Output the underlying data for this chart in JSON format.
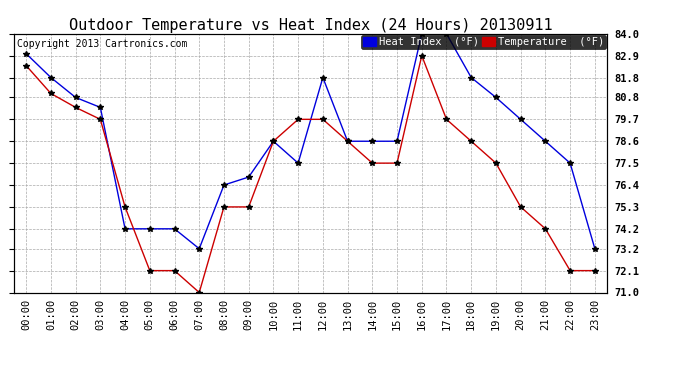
{
  "title": "Outdoor Temperature vs Heat Index (24 Hours) 20130911",
  "copyright": "Copyright 2013 Cartronics.com",
  "background_color": "#ffffff",
  "plot_bg_color": "#ffffff",
  "grid_color": "#aaaaaa",
  "hours": [
    "00:00",
    "01:00",
    "02:00",
    "03:00",
    "04:00",
    "05:00",
    "06:00",
    "07:00",
    "08:00",
    "09:00",
    "10:00",
    "11:00",
    "12:00",
    "13:00",
    "14:00",
    "15:00",
    "16:00",
    "17:00",
    "18:00",
    "19:00",
    "20:00",
    "21:00",
    "22:00",
    "23:00"
  ],
  "heat_index": [
    83.0,
    81.8,
    80.8,
    80.3,
    74.2,
    74.2,
    74.2,
    73.2,
    76.4,
    76.8,
    78.6,
    77.5,
    81.8,
    78.6,
    78.6,
    78.6,
    84.0,
    84.0,
    81.8,
    80.8,
    79.7,
    78.6,
    77.5,
    73.2
  ],
  "temperature": [
    82.4,
    81.0,
    80.3,
    79.7,
    75.3,
    72.1,
    72.1,
    71.0,
    75.3,
    75.3,
    78.6,
    79.7,
    79.7,
    78.6,
    77.5,
    77.5,
    82.9,
    79.7,
    78.6,
    77.5,
    75.3,
    74.2,
    72.1,
    72.1
  ],
  "heat_index_color": "#0000dd",
  "temperature_color": "#cc0000",
  "ylim_min": 71.0,
  "ylim_max": 84.0,
  "yticks": [
    71.0,
    72.1,
    73.2,
    74.2,
    75.3,
    76.4,
    77.5,
    78.6,
    79.7,
    80.8,
    81.8,
    82.9,
    84.0
  ],
  "legend_hi_label": "Heat Index  (°F)",
  "legend_temp_label": "Temperature  (°F)",
  "title_fontsize": 11,
  "copyright_fontsize": 7,
  "tick_fontsize": 7.5,
  "legend_fontsize": 7.5
}
